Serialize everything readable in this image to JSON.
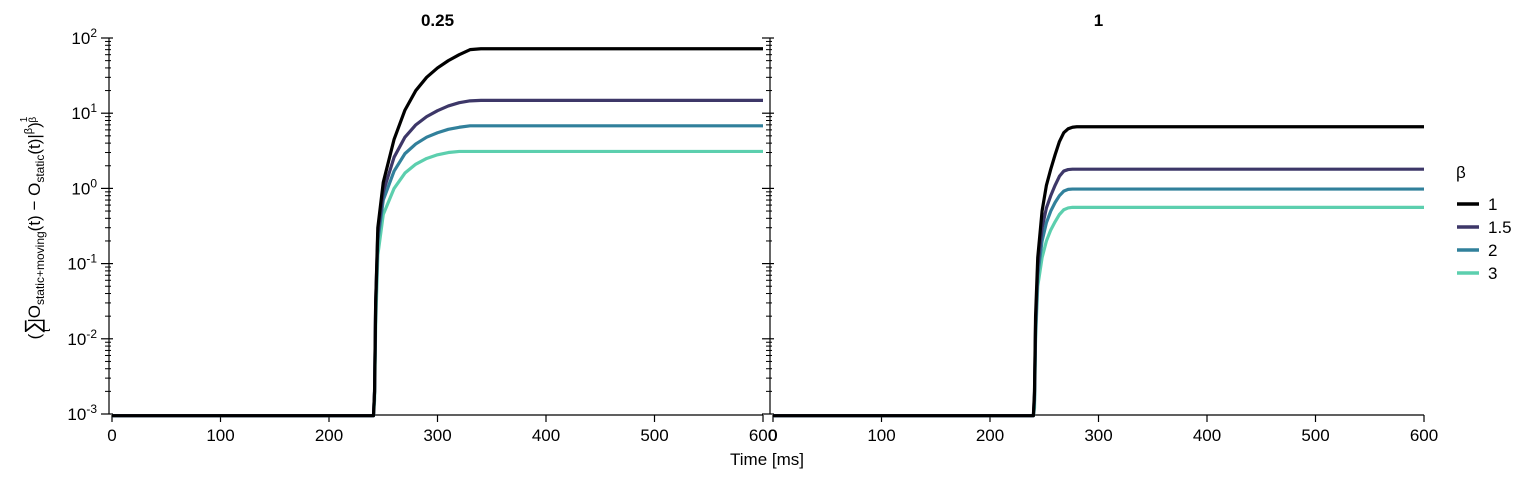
{
  "chart_data": {
    "type": "line",
    "xlabel": "Time [ms]",
    "ylabel_parts": {
      "open": "(",
      "sum": "∑",
      "sum_sub": "t",
      "bar1": "|O",
      "sub1": "static+moving",
      "mid": "(t) − O",
      "sub2": "static",
      "tail": "(t)|",
      "sup1": "β",
      "close": ")",
      "frac_num": "1",
      "frac_den": "β"
    },
    "y_scale": "log",
    "ylim": [
      0.001,
      100
    ],
    "xlim": [
      0,
      600
    ],
    "x_ticks": [
      0,
      100,
      200,
      300,
      400,
      500,
      600
    ],
    "y_ticks": [
      {
        "value": 0.001,
        "base": "10",
        "exp": "-3"
      },
      {
        "value": 0.01,
        "base": "10",
        "exp": "-2"
      },
      {
        "value": 0.1,
        "base": "10",
        "exp": "-1"
      },
      {
        "value": 1,
        "base": "10",
        "exp": "0"
      },
      {
        "value": 10,
        "base": "10",
        "exp": "1"
      },
      {
        "value": 100,
        "base": "10",
        "exp": "2"
      }
    ],
    "legend": {
      "title": "β",
      "position": "right"
    },
    "colors": {
      "1": "#000000",
      "1.5": "#3d3768",
      "2": "#31809b",
      "3": "#5ccfae"
    },
    "panels": [
      {
        "title": "0.25",
        "x": [
          0,
          241,
          242,
          243,
          245,
          250,
          260,
          270,
          280,
          290,
          300,
          310,
          320,
          330,
          340,
          600
        ],
        "series": [
          {
            "name": "1",
            "values": [
              0.00095,
              0.00095,
              0.002,
              0.03,
              0.3,
              1.2,
              4.5,
              11,
              20,
              30,
              40,
              50,
              60,
              70,
              72,
              72
            ]
          },
          {
            "name": "1.5",
            "values": [
              0.00095,
              0.00095,
              0.002,
              0.03,
              0.25,
              0.9,
              2.6,
              4.8,
              7,
              9,
              10.8,
              12.5,
              13.8,
              14.6,
              14.8,
              14.8
            ]
          },
          {
            "name": "2",
            "values": [
              0.00095,
              0.00095,
              0.002,
              0.025,
              0.2,
              0.7,
              1.7,
              2.9,
              3.9,
              4.8,
              5.5,
              6.1,
              6.5,
              6.8,
              6.8,
              6.8
            ]
          },
          {
            "name": "3",
            "values": [
              0.00095,
              0.00095,
              0.0015,
              0.015,
              0.13,
              0.45,
              1.0,
              1.6,
              2.1,
              2.5,
              2.8,
              3.0,
              3.1,
              3.1,
              3.1,
              3.1
            ]
          }
        ]
      },
      {
        "title": "1",
        "x": [
          0,
          240,
          241,
          242,
          244,
          248,
          252,
          256,
          260,
          264,
          268,
          272,
          276,
          280,
          600
        ],
        "series": [
          {
            "name": "1",
            "values": [
              0.00095,
              0.00095,
              0.002,
              0.02,
              0.12,
              0.5,
              1.1,
              1.8,
              2.8,
              4.2,
              5.5,
              6.2,
              6.5,
              6.6,
              6.6
            ]
          },
          {
            "name": "1.5",
            "values": [
              0.00095,
              0.00095,
              0.0018,
              0.015,
              0.09,
              0.3,
              0.55,
              0.8,
              1.1,
              1.45,
              1.7,
              1.78,
              1.8,
              1.8,
              1.8
            ]
          },
          {
            "name": "2",
            "values": [
              0.00095,
              0.00095,
              0.0015,
              0.012,
              0.07,
              0.2,
              0.35,
              0.5,
              0.65,
              0.8,
              0.92,
              0.97,
              0.98,
              0.98,
              0.98
            ]
          },
          {
            "name": "3",
            "values": [
              0.00095,
              0.00095,
              0.0012,
              0.01,
              0.05,
              0.12,
              0.2,
              0.28,
              0.36,
              0.45,
              0.52,
              0.55,
              0.56,
              0.56,
              0.56
            ]
          }
        ]
      }
    ]
  }
}
